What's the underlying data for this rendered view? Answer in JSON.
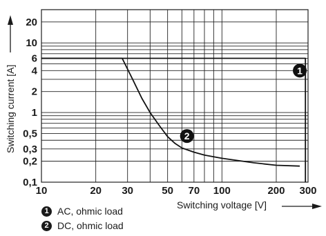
{
  "chart_data": {
    "type": "line",
    "x_scale": "log",
    "y_scale": "log",
    "xlim": [
      10,
      300
    ],
    "ylim": [
      0.1,
      30
    ],
    "x_ticks": [
      {
        "v": 10,
        "label": "10"
      },
      {
        "v": 20,
        "label": "20"
      },
      {
        "v": 30,
        "label": "30"
      },
      {
        "v": 50,
        "label": "50"
      },
      {
        "v": 70,
        "label": "70"
      },
      {
        "v": 100,
        "label": "100"
      },
      {
        "v": 200,
        "label": "200"
      },
      {
        "v": 300,
        "label": "300"
      }
    ],
    "x_grid": [
      10,
      20,
      30,
      40,
      50,
      60,
      70,
      80,
      90,
      100,
      200,
      300
    ],
    "y_ticks": [
      {
        "v": 0.1,
        "label": "0,1"
      },
      {
        "v": 0.2,
        "label": "0,2"
      },
      {
        "v": 0.3,
        "label": "0,3"
      },
      {
        "v": 0.5,
        "label": "0,5"
      },
      {
        "v": 1,
        "label": "1"
      },
      {
        "v": 2,
        "label": "2"
      },
      {
        "v": 4,
        "label": "4"
      },
      {
        "v": 6,
        "label": "6"
      },
      {
        "v": 10,
        "label": "10"
      },
      {
        "v": 20,
        "label": "20"
      }
    ],
    "y_grid": [
      0.1,
      0.2,
      0.3,
      0.4,
      0.5,
      0.6,
      0.7,
      0.8,
      0.9,
      1,
      2,
      3,
      4,
      5,
      6,
      7,
      8,
      9,
      10,
      20
    ],
    "xlabel": "Switching voltage [V]",
    "ylabel": "Switching current [A]",
    "series": [
      {
        "name": "AC, ohmic load",
        "marker": "1",
        "x": [
          10,
          290,
          290
        ],
        "y": [
          6,
          6,
          0.1
        ]
      },
      {
        "name": "DC, ohmic load",
        "marker": "2",
        "x": [
          10,
          28,
          32,
          36,
          40,
          45,
          50,
          55,
          60,
          70,
          80,
          100,
          150,
          200,
          270
        ],
        "y": [
          6,
          6,
          3,
          1.6,
          1.0,
          0.65,
          0.45,
          0.36,
          0.31,
          0.27,
          0.245,
          0.22,
          0.19,
          0.175,
          0.17
        ]
      }
    ]
  },
  "legend": {
    "items": [
      {
        "badge": "1",
        "label": "AC, ohmic load"
      },
      {
        "badge": "2",
        "label": "DC, ohmic load"
      }
    ]
  }
}
